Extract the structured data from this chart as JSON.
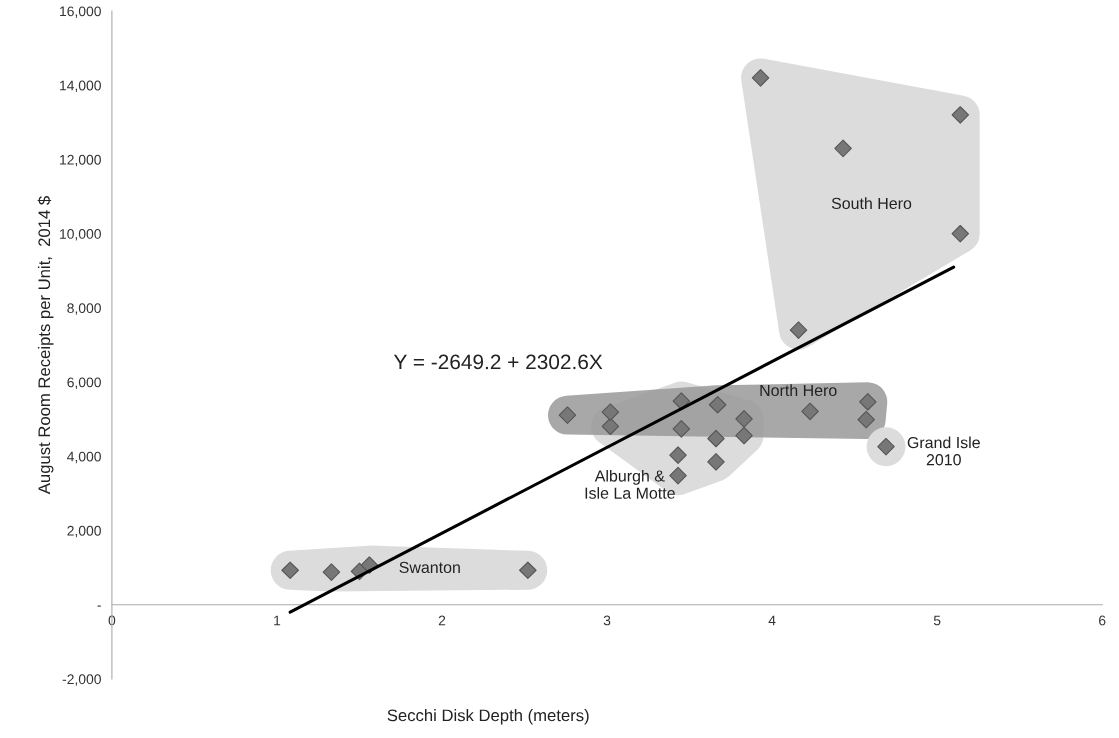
{
  "chart_data": {
    "type": "scatter",
    "xlabel": "Secchi Disk Depth (meters)",
    "ylabel": "August Room Receipts per Unit,  2014 $",
    "xlim": [
      0,
      6
    ],
    "xticks": [
      0,
      1,
      2,
      3,
      4,
      5,
      6
    ],
    "ylim": [
      -2000,
      16000
    ],
    "yticks": [
      {
        "value": -2000,
        "label": "-2,000"
      },
      {
        "value": 0,
        "label": "-"
      },
      {
        "value": 2000,
        "label": "2,000"
      },
      {
        "value": 4000,
        "label": "4,000"
      },
      {
        "value": 6000,
        "label": "6,000"
      },
      {
        "value": 8000,
        "label": "8,000"
      },
      {
        "value": 10000,
        "label": "10,000"
      },
      {
        "value": 12000,
        "label": "12,000"
      },
      {
        "value": 14000,
        "label": "14,000"
      },
      {
        "value": 16000,
        "label": "16,000"
      }
    ],
    "grid": false,
    "legend": false,
    "marker": "diamond",
    "series": [
      {
        "color": "#777777",
        "x": [
          1.08,
          1.33,
          1.5,
          1.56,
          2.52
        ],
        "values": [
          930,
          880,
          900,
          1070,
          930
        ]
      },
      {
        "color": "#777777",
        "x": [
          3.02,
          3.45,
          3.83,
          3.45,
          3.66,
          3.83,
          3.43,
          3.66,
          3.43
        ],
        "values": [
          4810,
          5490,
          5010,
          4740,
          4480,
          4560,
          4030,
          3850,
          3480
        ]
      },
      {
        "color": "#777777",
        "x": [
          2.76,
          3.02,
          3.67,
          4.23,
          4.58,
          4.57
        ],
        "values": [
          5110,
          5190,
          5390,
          5210,
          5470,
          4990
        ]
      },
      {
        "color": "#777777",
        "x": [
          4.69
        ],
        "values": [
          4260
        ]
      },
      {
        "color": "#777777",
        "x": [
          3.93,
          5.14,
          4.43,
          5.14,
          4.16
        ],
        "values": [
          14200,
          13200,
          12300,
          10000,
          7400
        ]
      },
      {
        "type": "line",
        "color": "#000000",
        "marker": "none",
        "x": [
          1.08,
          5.1
        ],
        "values": [
          -200,
          9100
        ]
      }
    ],
    "annotations": [
      "Y = -2649.2 + 2302.6X",
      "Swanton",
      "Alburgh &\nIsle La Motte",
      "North Hero",
      "Grand Isle\n2010",
      "South Hero"
    ]
  }
}
